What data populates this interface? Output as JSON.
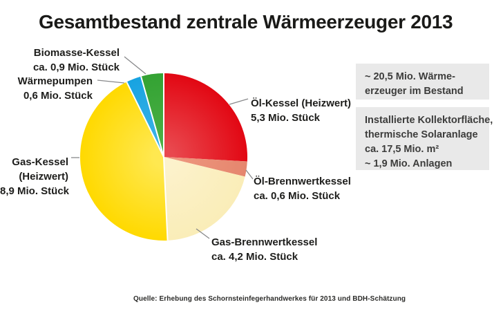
{
  "page": {
    "title": "Gesamtbestand zentrale Wärmeerzeuger 2013",
    "source": "Quelle: Erhebung des Schornsteinfegerhandwerkes für 2013 und BDH-Schätzung"
  },
  "info_boxes": [
    {
      "lines": [
        "~ 20,5 Mio. Wärme-",
        "erzeuger im Bestand"
      ]
    },
    {
      "lines": [
        "Installierte Kollektorfläche,",
        "thermische Solaranlage",
        "ca. 17,5 Mio. m²",
        "~ 1,9 Mio. Anlagen"
      ]
    }
  ],
  "chart_data": {
    "type": "pie",
    "title": "Gesamtbestand zentrale Wärmeerzeuger 2013",
    "unit": "Mio. Stück",
    "total": 20.5,
    "start_angle_deg": 0,
    "direction": "clockwise",
    "legend_position": "callout-labels",
    "divider_color": "#ffffff",
    "leader_line_color": "#87888a",
    "segments": [
      {
        "name": "Öl-Kessel (Heizwert)",
        "value": 5.3,
        "label_lines": [
          "Öl-Kessel (Heizwert)",
          "5,3 Mio. Stück"
        ],
        "color": "#e20713",
        "color_inner": "#e9484e",
        "divider_before": true
      },
      {
        "name": "Öl-Brennwertkessel",
        "value": 0.6,
        "label_lines": [
          "Öl-Brennwertkessel",
          "ca. 0,6 Mio. Stück"
        ],
        "color": "#e5866e",
        "color_inner": "#ee977e",
        "divider_before": false
      },
      {
        "name": "Gas-Brennwertkessel",
        "value": 4.2,
        "label_lines": [
          "Gas-Brennwertkessel",
          "ca. 4,2 Mio. Stück"
        ],
        "color": "#faedb8",
        "color_inner": "#fcf2cc",
        "divider_before": false
      },
      {
        "name": "Gas-Kessel (Heizwert)",
        "value": 8.9,
        "label_lines": [
          "Gas-Kessel",
          "(Heizwert)",
          "8,9 Mio. Stück"
        ],
        "color": "#ffd900",
        "color_inner": "#ffe850",
        "divider_before": true
      },
      {
        "name": "Wärmepumpen",
        "value": 0.6,
        "label_lines": [
          "Wärmepumpen",
          "0,6 Mio. Stück"
        ],
        "color": "#17a3e1",
        "color_inner": "#3eb3e6",
        "divider_before": true
      },
      {
        "name": "Biomasse-Kessel",
        "value": 0.9,
        "label_lines": [
          "Biomasse-Kessel",
          "ca. 0,9 Mio. Stück"
        ],
        "color": "#33a233",
        "color_inner": "#4cb146",
        "divider_before": true
      }
    ]
  }
}
